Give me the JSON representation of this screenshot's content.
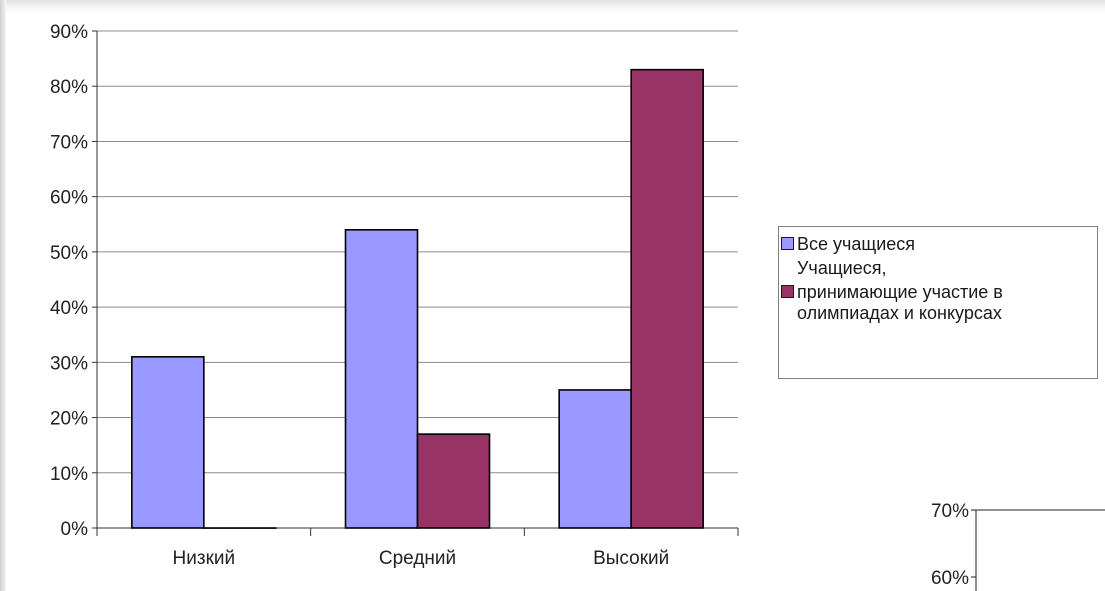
{
  "chart_data": [
    {
      "type": "bar",
      "categories": [
        "Низкий",
        "Средний",
        "Высокий"
      ],
      "series": [
        {
          "name": "Все учащиеся",
          "values": [
            31,
            54,
            25
          ],
          "color": "#9999ff"
        },
        {
          "name": "Учащиеся, принимающие участие в олимпиадах и конкурсах",
          "values": [
            0,
            17,
            83
          ],
          "color": "#993366"
        }
      ],
      "ylim": [
        0,
        90
      ],
      "yticks": [
        "0%",
        "10%",
        "20%",
        "30%",
        "40%",
        "50%",
        "60%",
        "70%",
        "80%",
        "90%"
      ],
      "grid": true,
      "legend_position": "right"
    },
    {
      "type": "bar",
      "partial": true,
      "yticks": [
        "60%",
        "70%"
      ]
    }
  ],
  "legend": {
    "item1": "Все учащиеся",
    "item2_line1": "Учащиеся,",
    "item2_rest": "принимающие участие в олимпиадах и конкурсах"
  }
}
